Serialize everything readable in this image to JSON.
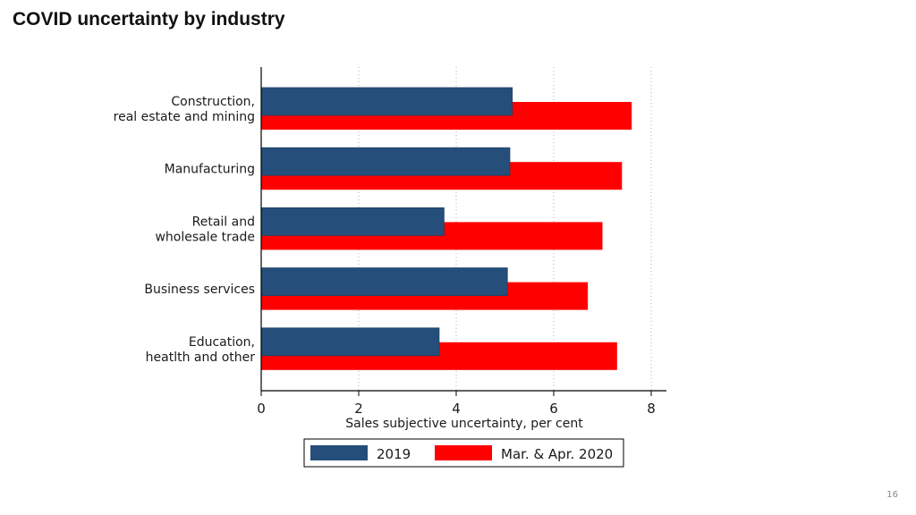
{
  "title": "COVID uncertainty by industry",
  "page_number": "16",
  "colors": {
    "series_2019": "#254f7a",
    "series_2020": "#ff0000",
    "axis": "#000000",
    "grid": "#b0b0b0"
  },
  "chart_data": {
    "type": "bar",
    "orientation": "horizontal",
    "categories": [
      [
        "Construction,",
        "real estate and mining"
      ],
      [
        "Manufacturing"
      ],
      [
        "Retail and",
        "wholesale trade"
      ],
      [
        "Business services"
      ],
      [
        "Education,",
        "heatlth and other"
      ]
    ],
    "series": [
      {
        "name": "2019",
        "values": [
          5.15,
          5.1,
          3.75,
          5.05,
          3.65
        ]
      },
      {
        "name": "Mar. & Apr. 2020",
        "values": [
          7.6,
          7.4,
          7.0,
          6.7,
          7.3
        ]
      }
    ],
    "xlabel": "Sales subjective uncertainty, per cent",
    "ylabel": "",
    "xlim": [
      0,
      8
    ],
    "xticks": [
      0,
      2,
      4,
      6,
      8
    ],
    "grid": "vertical dotted",
    "legend": "bottom"
  }
}
